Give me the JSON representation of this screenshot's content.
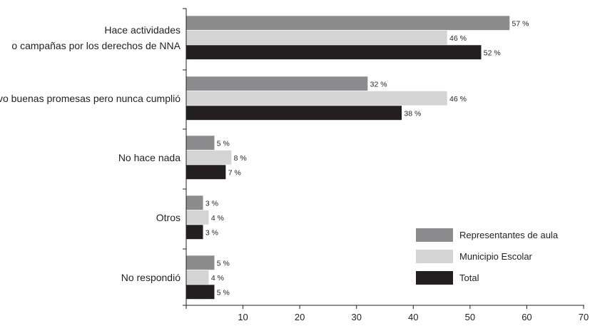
{
  "chart_data": {
    "type": "bar",
    "orientation": "horizontal",
    "categories": [
      [
        "Hace actividades",
        "o campañas por los derechos de NNA"
      ],
      [
        "Tuvo buenas promesas pero nunca cumplió"
      ],
      [
        "No hace nada"
      ],
      [
        "Otros"
      ],
      [
        "No respondió"
      ]
    ],
    "series": [
      {
        "name": "Representantes de aula",
        "color": "#8c8b8d",
        "values": [
          57,
          32,
          5,
          3,
          5
        ],
        "labels": [
          "57 %",
          "32 %",
          "5 %",
          "3 %",
          "5 %"
        ]
      },
      {
        "name": "Municipio Escolar",
        "color": "#d4d4d4",
        "values": [
          46,
          46,
          8,
          4,
          4
        ],
        "labels": [
          "46 %",
          "46 %",
          "8 %",
          "4 %",
          "4 %"
        ]
      },
      {
        "name": "Total",
        "color": "#231f20",
        "values": [
          52,
          38,
          7,
          3,
          5
        ],
        "labels": [
          "52 %",
          "38 %",
          "7 %",
          "3 %",
          "5 %"
        ]
      }
    ],
    "xlim": [
      0,
      70
    ],
    "xticks": [
      10,
      20,
      30,
      40,
      50,
      60,
      70
    ],
    "title": "",
    "xlabel": "",
    "ylabel": "",
    "grid": false,
    "legend_position": "bottom-right"
  }
}
